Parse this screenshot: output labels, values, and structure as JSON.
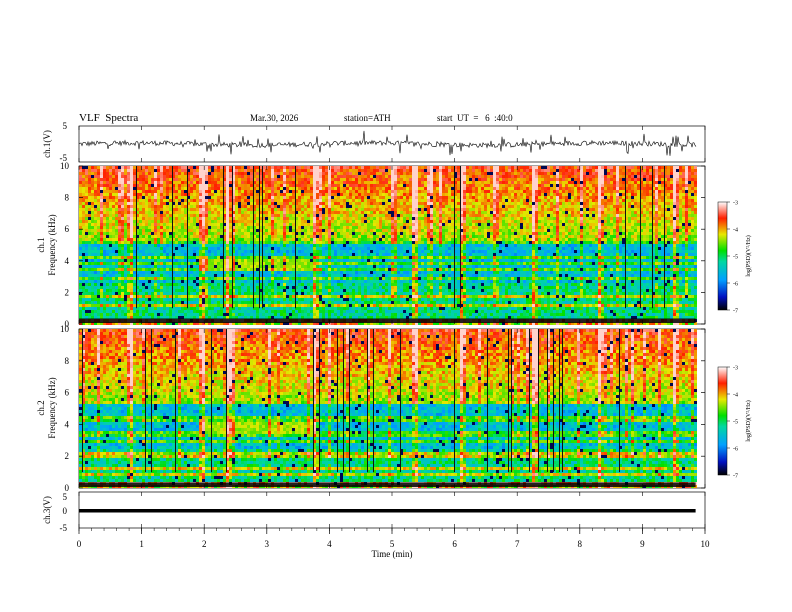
{
  "header": {
    "title": "VLF  Spectra",
    "date": "Mar.30, 2026",
    "station": "station=ATH",
    "start_ut": "start  UT  =   6  :40:0"
  },
  "chart_data": [
    {
      "type": "line",
      "name": "ch1-waveform",
      "ylabel": "ch.1(V)",
      "ylim": [
        -5,
        5
      ],
      "yticks": [
        "5",
        "-5"
      ],
      "xlim": [
        0,
        10
      ]
    },
    {
      "type": "heatmap",
      "name": "ch1-spectrogram",
      "ylabel_top": "ch.1",
      "ylabel": "Frequency  (kHz)",
      "ylim": [
        0,
        10
      ],
      "yticks": [
        "0",
        "2",
        "4",
        "6",
        "8",
        "10"
      ],
      "xlim": [
        0,
        10
      ],
      "colorbar": {
        "label": "log(PSD)(V²/Hz)",
        "range": [
          -7,
          -3
        ],
        "ticks": [
          "-3",
          "-4",
          "-5",
          "-6",
          "-7"
        ]
      },
      "bands_khz": [
        0.3,
        0.8,
        1.3,
        1.8,
        2.3,
        3.0,
        3.6,
        3.9,
        4.3,
        5.2
      ],
      "bursts_min": [
        0.8,
        1.95,
        2.35,
        3.75,
        5.35,
        6.1,
        7.25,
        8.3,
        9.5
      ],
      "emission_min": [
        1.9,
        3.7
      ]
    },
    {
      "type": "heatmap",
      "name": "ch2-spectrogram",
      "ylabel_top": "ch.2",
      "ylabel": "Frequency  (kHz)",
      "ylim": [
        0,
        10
      ],
      "yticks": [
        "0",
        "2",
        "4",
        "6",
        "8",
        "10"
      ],
      "xlim": [
        0,
        10
      ],
      "colorbar": {
        "label": "log(PSD)(V²/Hz)",
        "range": [
          -7,
          -3
        ],
        "ticks": [
          "-3",
          "-4",
          "-5",
          "-6",
          "-7"
        ]
      },
      "bands_khz": [
        0.3,
        0.9,
        1.4,
        2.0,
        2.2,
        3.0,
        3.4,
        3.6,
        4.3,
        4.6
      ],
      "bursts_min": [
        0.8,
        1.95,
        2.35,
        3.75,
        5.35,
        6.1,
        7.25,
        8.3,
        9.5
      ],
      "emission_min": [
        1.9,
        3.75
      ]
    },
    {
      "type": "line",
      "name": "ch3-waveform",
      "ylabel": "ch.3(V)",
      "ylim": [
        -5,
        5
      ],
      "yticks": [
        "5",
        "0",
        "-5"
      ],
      "xlim": [
        0,
        10
      ],
      "value_v": 0
    }
  ],
  "xaxis": {
    "label": "Time  (min)",
    "ticks": [
      "0",
      "1",
      "2",
      "3",
      "4",
      "5",
      "6",
      "7",
      "8",
      "9",
      "10"
    ],
    "data_end_min": 9.85
  }
}
